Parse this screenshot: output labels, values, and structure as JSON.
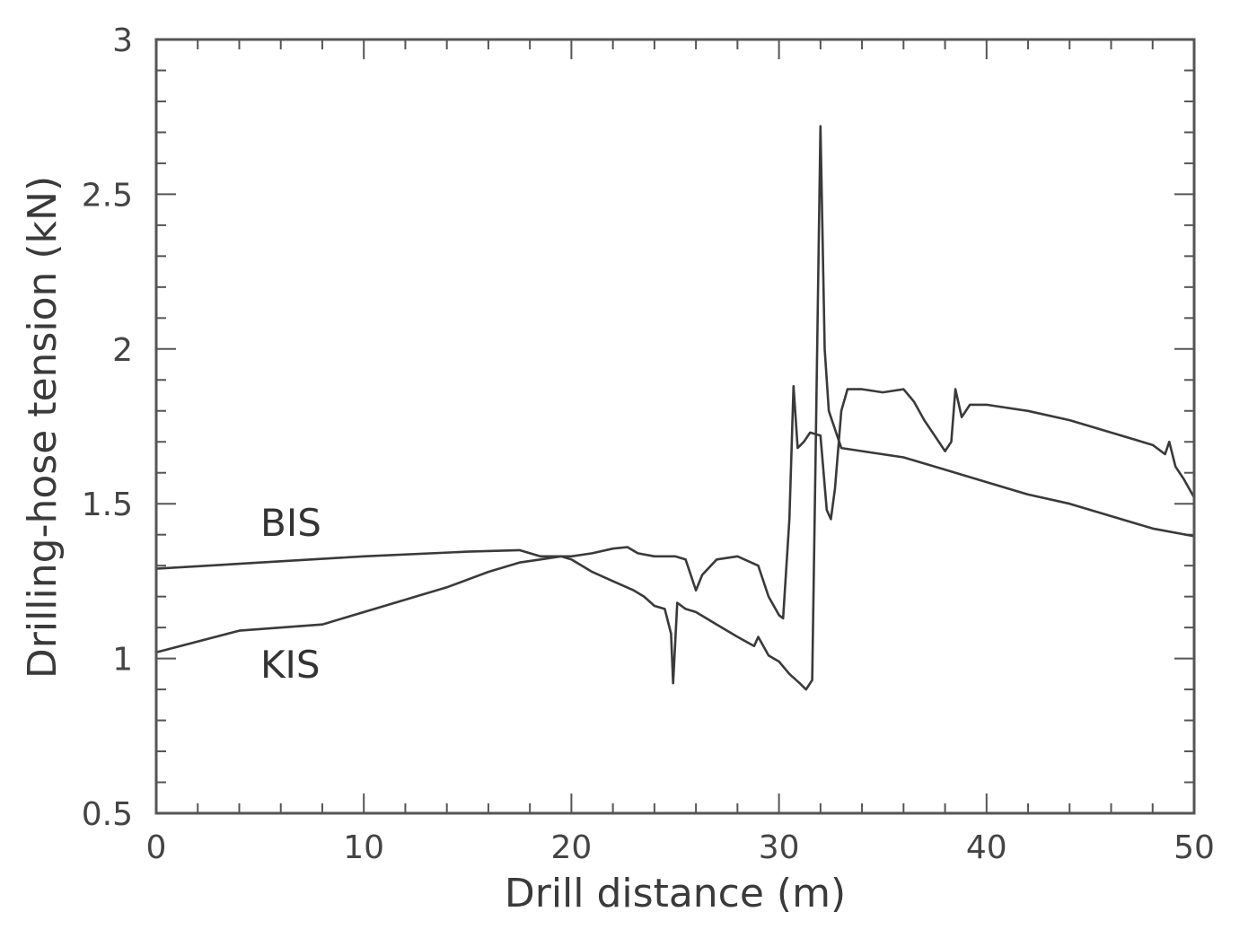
{
  "chart_data": {
    "type": "line",
    "title": "",
    "xlabel": "Drill distance (m)",
    "ylabel": "Drilling-hose tension (kN)",
    "xlim": [
      0,
      50
    ],
    "ylim": [
      0.5,
      3
    ],
    "x_ticks": [
      0,
      10,
      20,
      30,
      40,
      50
    ],
    "x_tick_labels": [
      "0",
      "10",
      "20",
      "30",
      "40",
      "50"
    ],
    "y_ticks": [
      0.5,
      1,
      1.5,
      2,
      2.5,
      3
    ],
    "y_tick_labels": [
      "0.5",
      "1",
      "1.5",
      "2",
      "2.5",
      "3"
    ],
    "grid": false,
    "legend": "none",
    "series": [
      {
        "name": "BIS",
        "points": [
          [
            0,
            1.29
          ],
          [
            5,
            1.31
          ],
          [
            10,
            1.33
          ],
          [
            15,
            1.345
          ],
          [
            17.5,
            1.35
          ],
          [
            18.5,
            1.33
          ],
          [
            20,
            1.33
          ],
          [
            21,
            1.34
          ],
          [
            22,
            1.355
          ],
          [
            22.7,
            1.36
          ],
          [
            23.2,
            1.34
          ],
          [
            24,
            1.33
          ],
          [
            25,
            1.33
          ],
          [
            25.5,
            1.32
          ],
          [
            26,
            1.22
          ],
          [
            26.3,
            1.27
          ],
          [
            27,
            1.32
          ],
          [
            28,
            1.33
          ],
          [
            29,
            1.3
          ],
          [
            29.5,
            1.2
          ],
          [
            30,
            1.14
          ],
          [
            30.2,
            1.13
          ],
          [
            30.5,
            1.45
          ],
          [
            30.7,
            1.88
          ],
          [
            30.9,
            1.68
          ],
          [
            31.2,
            1.7
          ],
          [
            31.5,
            1.73
          ],
          [
            32,
            1.72
          ],
          [
            32.3,
            1.48
          ],
          [
            32.5,
            1.45
          ],
          [
            32.7,
            1.55
          ],
          [
            33,
            1.8
          ],
          [
            33.3,
            1.87
          ],
          [
            34,
            1.87
          ],
          [
            35,
            1.86
          ],
          [
            36,
            1.87
          ],
          [
            36.5,
            1.83
          ],
          [
            37,
            1.77
          ],
          [
            37.5,
            1.72
          ],
          [
            38,
            1.67
          ],
          [
            38.3,
            1.7
          ],
          [
            38.5,
            1.87
          ],
          [
            38.8,
            1.78
          ],
          [
            39.2,
            1.82
          ],
          [
            40,
            1.82
          ],
          [
            42,
            1.8
          ],
          [
            44,
            1.77
          ],
          [
            46,
            1.73
          ],
          [
            48,
            1.69
          ],
          [
            48.6,
            1.66
          ],
          [
            48.8,
            1.7
          ],
          [
            49.1,
            1.62
          ],
          [
            49.5,
            1.58
          ],
          [
            50,
            1.52
          ]
        ]
      },
      {
        "name": "KIS",
        "points": [
          [
            0,
            1.02
          ],
          [
            4,
            1.09
          ],
          [
            8,
            1.11
          ],
          [
            11,
            1.17
          ],
          [
            14,
            1.23
          ],
          [
            16,
            1.28
          ],
          [
            17.5,
            1.31
          ],
          [
            18.5,
            1.32
          ],
          [
            19.5,
            1.33
          ],
          [
            20,
            1.32
          ],
          [
            21,
            1.28
          ],
          [
            22,
            1.25
          ],
          [
            23,
            1.22
          ],
          [
            23.5,
            1.2
          ],
          [
            24,
            1.17
          ],
          [
            24.5,
            1.16
          ],
          [
            24.8,
            1.08
          ],
          [
            24.9,
            0.92
          ],
          [
            25.1,
            1.18
          ],
          [
            25.5,
            1.16
          ],
          [
            26,
            1.15
          ],
          [
            27,
            1.11
          ],
          [
            28,
            1.07
          ],
          [
            28.8,
            1.04
          ],
          [
            29,
            1.07
          ],
          [
            29.5,
            1.01
          ],
          [
            30,
            0.99
          ],
          [
            30.5,
            0.95
          ],
          [
            31,
            0.92
          ],
          [
            31.3,
            0.9
          ],
          [
            31.6,
            0.93
          ],
          [
            31.75,
            1.6
          ],
          [
            32,
            2.72
          ],
          [
            32.2,
            2.0
          ],
          [
            32.4,
            1.8
          ],
          [
            33,
            1.68
          ],
          [
            34,
            1.67
          ],
          [
            36,
            1.65
          ],
          [
            38,
            1.61
          ],
          [
            40,
            1.57
          ],
          [
            42,
            1.53
          ],
          [
            44,
            1.5
          ],
          [
            46,
            1.46
          ],
          [
            48,
            1.42
          ],
          [
            50,
            1.395
          ]
        ]
      }
    ]
  }
}
